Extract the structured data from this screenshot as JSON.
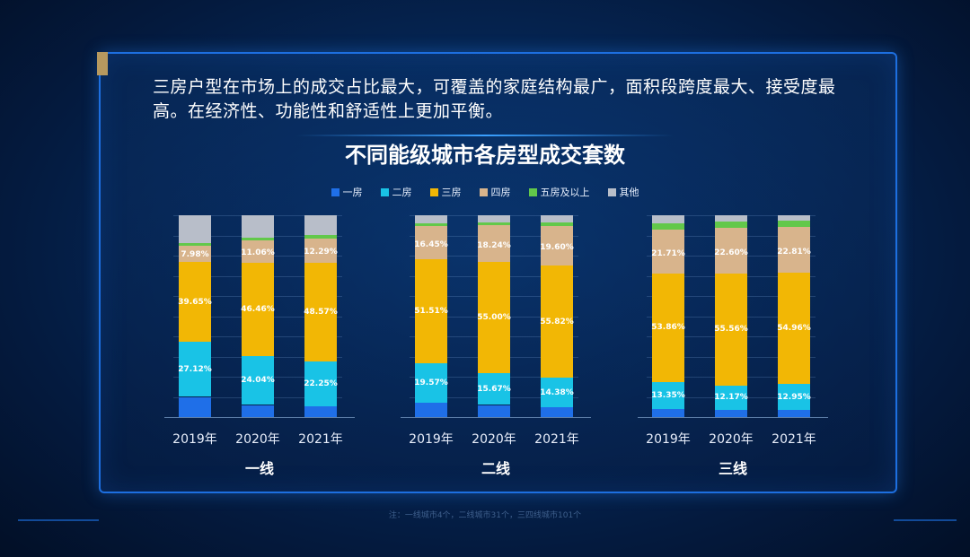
{
  "headline": "三房户型在市场上的成交占比最大，可覆盖的家庭结构最广，面积段跨度最大、接受度最高。在经济性、功能性和舒适性上更加平衡。",
  "note": "注：一线城市4个，二线城市31个，三四线城市101个",
  "colors": {
    "一房": "#1f6fe8",
    "二房": "#19c3e6",
    "三房": "#f2b705",
    "四房": "#d8b48c",
    "五房及以上": "#62c84a",
    "其他": "#b8bec9"
  },
  "chart_data": {
    "type": "bar",
    "stacked": true,
    "title": "不同能级城市各房型成交套数",
    "legend": [
      "一房",
      "二房",
      "三房",
      "四房",
      "五房及以上",
      "其他"
    ],
    "legend_position": "top",
    "ylim": [
      0,
      100
    ],
    "groups": [
      {
        "name": "一线",
        "categories": [
          "2019年",
          "2020年",
          "2021年"
        ],
        "series": [
          {
            "name": "一房",
            "values": [
              10.0,
              6.0,
              5.5
            ]
          },
          {
            "name": "二房",
            "values": [
              27.12,
              24.04,
              22.25
            ]
          },
          {
            "name": "三房",
            "values": [
              39.65,
              46.46,
              48.57
            ]
          },
          {
            "name": "四房",
            "values": [
              7.98,
              11.06,
              12.29
            ]
          },
          {
            "name": "五房及以上",
            "values": [
              1.5,
              1.5,
              1.5
            ]
          },
          {
            "name": "其他",
            "values": [
              13.75,
              10.94,
              9.89
            ]
          }
        ],
        "labels": {
          "二房": [
            "27.12%",
            "24.04%",
            "22.25%"
          ],
          "三房": [
            "39.65%",
            "46.46%",
            "48.57%"
          ],
          "四房": [
            "7.98%",
            "11.06%",
            "12.29%"
          ]
        }
      },
      {
        "name": "二线",
        "categories": [
          "2019年",
          "2020年",
          "2021年"
        ],
        "series": [
          {
            "name": "一房",
            "values": [
              7.0,
              6.0,
              5.0
            ]
          },
          {
            "name": "二房",
            "values": [
              19.57,
              15.67,
              14.38
            ]
          },
          {
            "name": "三房",
            "values": [
              51.51,
              55.0,
              55.82
            ]
          },
          {
            "name": "四房",
            "values": [
              16.45,
              18.24,
              19.6
            ]
          },
          {
            "name": "五房及以上",
            "values": [
              1.5,
              1.5,
              1.5
            ]
          },
          {
            "name": "其他",
            "values": [
              3.97,
              3.59,
              3.7
            ]
          }
        ],
        "labels": {
          "二房": [
            "19.57%",
            "15.67%",
            "14.38%"
          ],
          "三房": [
            "51.51%",
            "55.00%",
            "55.82%"
          ],
          "四房": [
            "16.45%",
            "18.24%",
            "19.60%"
          ]
        }
      },
      {
        "name": "三线",
        "categories": [
          "2019年",
          "2020年",
          "2021年"
        ],
        "series": [
          {
            "name": "一房",
            "values": [
              4.0,
              3.5,
              3.5
            ]
          },
          {
            "name": "二房",
            "values": [
              13.35,
              12.17,
              12.95
            ]
          },
          {
            "name": "三房",
            "values": [
              53.86,
              55.56,
              54.96
            ]
          },
          {
            "name": "四房",
            "values": [
              21.71,
              22.6,
              22.81
            ]
          },
          {
            "name": "五房及以上",
            "values": [
              3.0,
              3.0,
              3.0
            ]
          },
          {
            "name": "其他",
            "values": [
              4.08,
              3.17,
              2.78
            ]
          }
        ],
        "labels": {
          "二房": [
            "13.35%",
            "12.17%",
            "12.95%"
          ],
          "三房": [
            "53.86%",
            "55.56%",
            "54.96%"
          ],
          "四房": [
            "21.71%",
            "22.60%",
            "22.81%"
          ]
        }
      }
    ]
  }
}
